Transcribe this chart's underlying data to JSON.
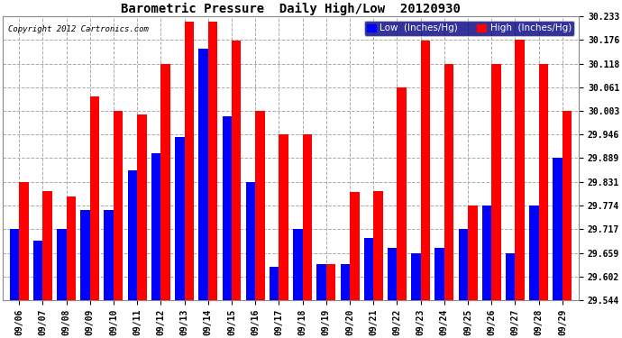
{
  "title": "Barometric Pressure  Daily High/Low  20120930",
  "copyright": "Copyright 2012 Cartronics.com",
  "legend_low": "Low  (Inches/Hg)",
  "legend_high": "High  (Inches/Hg)",
  "dates": [
    "09/06",
    "09/07",
    "09/08",
    "09/09",
    "09/10",
    "09/11",
    "09/12",
    "09/13",
    "09/14",
    "09/15",
    "09/16",
    "09/17",
    "09/18",
    "09/19",
    "09/20",
    "09/21",
    "09/22",
    "09/23",
    "09/24",
    "09/25",
    "09/26",
    "09/27",
    "09/28",
    "09/29"
  ],
  "low_values": [
    29.717,
    29.689,
    29.717,
    29.762,
    29.762,
    29.86,
    29.9,
    29.94,
    30.155,
    29.99,
    29.831,
    29.625,
    29.717,
    29.631,
    29.631,
    29.695,
    29.672,
    29.659,
    29.672,
    29.717,
    29.774,
    29.659,
    29.774,
    29.889
  ],
  "high_values": [
    29.831,
    29.809,
    29.796,
    30.038,
    30.003,
    29.994,
    30.118,
    30.22,
    30.22,
    30.175,
    30.003,
    29.946,
    29.946,
    29.631,
    29.806,
    29.809,
    30.061,
    30.175,
    30.118,
    29.774,
    30.118,
    30.176,
    30.118,
    30.003
  ],
  "ylim_min": 29.544,
  "ylim_max": 30.233,
  "yticks": [
    29.544,
    29.602,
    29.659,
    29.717,
    29.774,
    29.831,
    29.889,
    29.946,
    30.003,
    30.061,
    30.118,
    30.176,
    30.233
  ],
  "bar_color_low": "#0000ff",
  "bar_color_high": "#ff0000",
  "bg_color": "#ffffff",
  "plot_bg_color": "#ffffff",
  "grid_color": "#aaaaaa",
  "title_fontsize": 10,
  "tick_fontsize": 7,
  "legend_fontsize": 7.5
}
